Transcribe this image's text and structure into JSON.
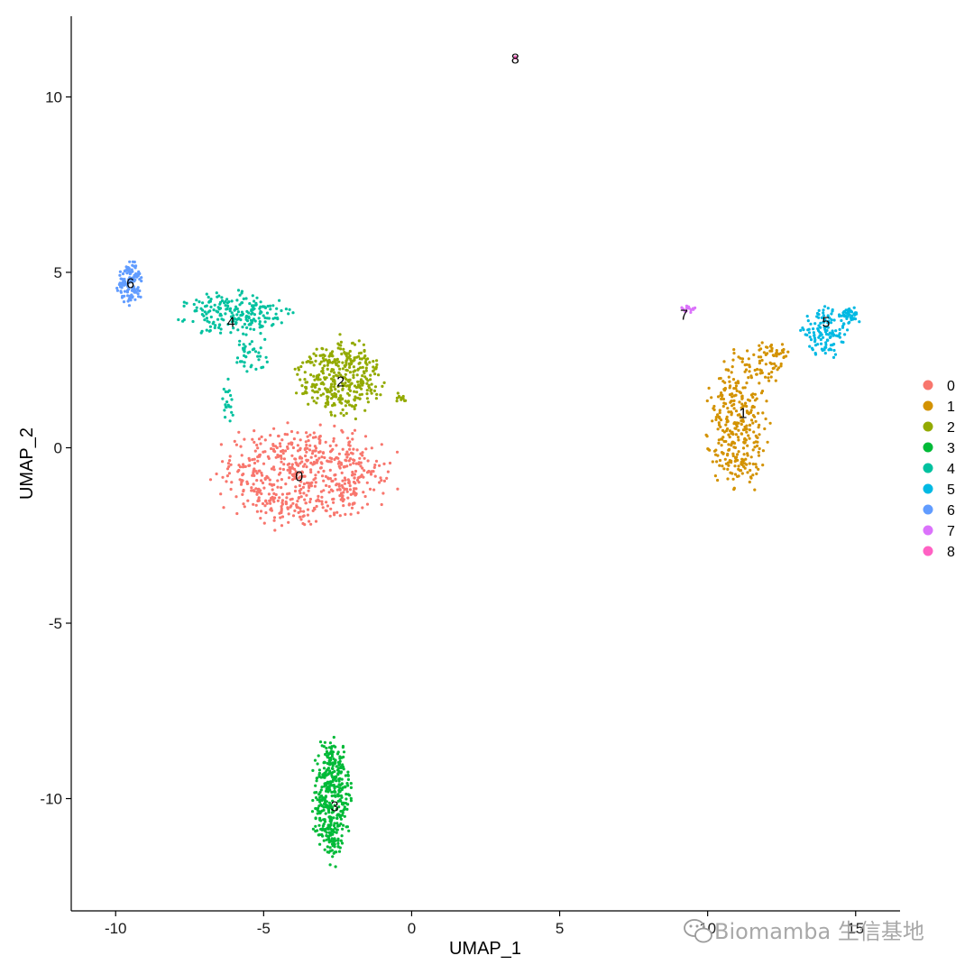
{
  "chart_data": {
    "type": "scatter",
    "title": "",
    "xlabel": "UMAP_1",
    "ylabel": "UMAP_2",
    "xlim": [
      -11.5,
      16.5
    ],
    "ylim": [
      -13.2,
      12.3
    ],
    "x_ticks": [
      -10,
      -5,
      0,
      5,
      10,
      15
    ],
    "y_ticks": [
      -10,
      -5,
      0,
      5,
      10
    ],
    "grid": false,
    "legend_position": "right",
    "series": [
      {
        "name": "0",
        "color": "#F8766D",
        "label_pos": [
          -3.8,
          -0.8
        ],
        "blobs": [
          {
            "cx": -3.6,
            "cy": -0.8,
            "rx": 3.5,
            "ry": 1.65,
            "n": 620
          }
        ]
      },
      {
        "name": "1",
        "color": "#D39200",
        "label_pos": [
          11.2,
          1.0
        ],
        "blobs": [
          {
            "cx": 11.0,
            "cy": 0.6,
            "rx": 1.2,
            "ry": 2.3,
            "n": 320
          },
          {
            "cx": 12.0,
            "cy": 2.5,
            "rx": 0.85,
            "ry": 0.7,
            "n": 70
          }
        ]
      },
      {
        "name": "2",
        "color": "#93AA00",
        "label_pos": [
          -2.4,
          1.9
        ],
        "blobs": [
          {
            "cx": -2.4,
            "cy": 2.0,
            "rx": 1.7,
            "ry": 1.25,
            "n": 360
          },
          {
            "cx": -0.35,
            "cy": 1.45,
            "rx": 0.25,
            "ry": 0.2,
            "n": 12
          }
        ]
      },
      {
        "name": "3",
        "color": "#00BA38",
        "label_pos": [
          -2.6,
          -10.2
        ],
        "blobs": [
          {
            "cx": -2.7,
            "cy": -10.0,
            "rx": 0.75,
            "ry": 2.0,
            "n": 420
          }
        ]
      },
      {
        "name": "4",
        "color": "#00C19F",
        "label_pos": [
          -6.1,
          3.6
        ],
        "blobs": [
          {
            "cx": -6.0,
            "cy": 3.85,
            "rx": 2.1,
            "ry": 0.75,
            "n": 210
          },
          {
            "cx": -5.4,
            "cy": 2.6,
            "rx": 0.7,
            "ry": 0.7,
            "n": 40
          },
          {
            "cx": -6.2,
            "cy": 1.4,
            "rx": 0.25,
            "ry": 0.8,
            "n": 20
          }
        ]
      },
      {
        "name": "5",
        "color": "#00B9E3",
        "label_pos": [
          14.0,
          3.6
        ],
        "blobs": [
          {
            "cx": 14.0,
            "cy": 3.3,
            "rx": 0.95,
            "ry": 0.8,
            "n": 120
          },
          {
            "cx": 14.8,
            "cy": 3.75,
            "rx": 0.45,
            "ry": 0.3,
            "n": 45
          }
        ]
      },
      {
        "name": "6",
        "color": "#619CFF",
        "label_pos": [
          -9.5,
          4.7
        ],
        "blobs": [
          {
            "cx": -9.5,
            "cy": 4.7,
            "rx": 0.5,
            "ry": 0.75,
            "n": 120
          }
        ]
      },
      {
        "name": "7",
        "color": "#DB72FB",
        "label_pos": [
          9.2,
          3.8
        ],
        "blobs": [
          {
            "cx": 9.35,
            "cy": 3.95,
            "rx": 0.3,
            "ry": 0.12,
            "n": 18
          }
        ]
      },
      {
        "name": "8",
        "color": "#FF61C3",
        "label_pos": [
          3.5,
          11.1
        ],
        "blobs": [
          {
            "cx": 3.5,
            "cy": 11.1,
            "rx": 0.05,
            "ry": 0.05,
            "n": 3
          }
        ]
      }
    ]
  },
  "watermark": {
    "text": "Biomamba 生信基地",
    "icon": "wechat-icon"
  }
}
